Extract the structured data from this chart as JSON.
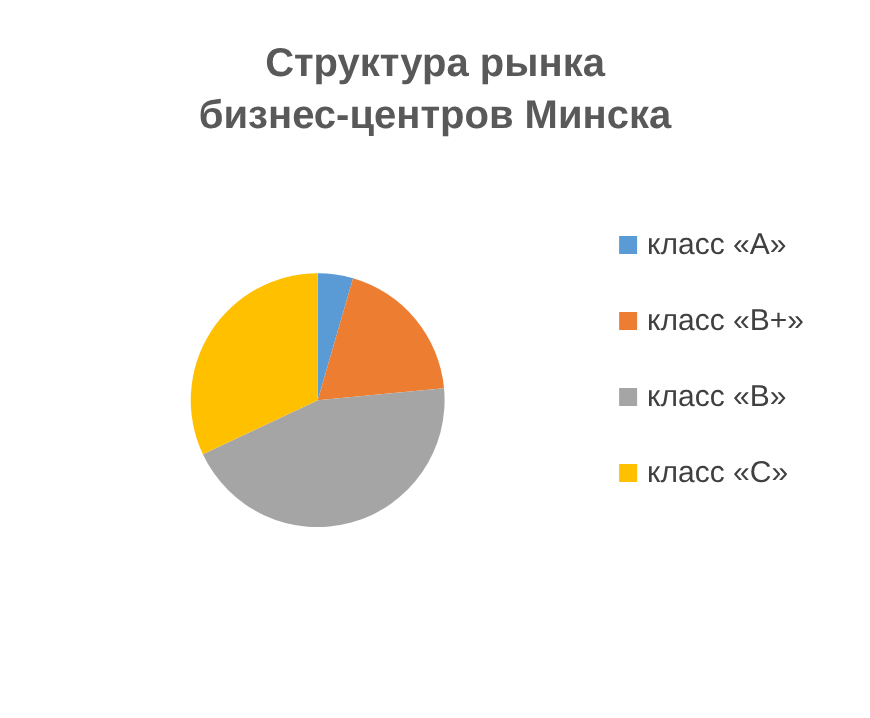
{
  "chart_data": {
    "type": "pie",
    "title": "Структура рынка\nбизнес-центров Минска",
    "categories": [
      "класс «A»",
      "класс «B+»",
      "класс «B»",
      "класс «C»"
    ],
    "values": [
      4.5,
      19,
      44.5,
      32
    ],
    "colors": [
      "#5b9bd5",
      "#ed7d31",
      "#a5a5a5",
      "#ffc000"
    ],
    "legend": "right"
  }
}
